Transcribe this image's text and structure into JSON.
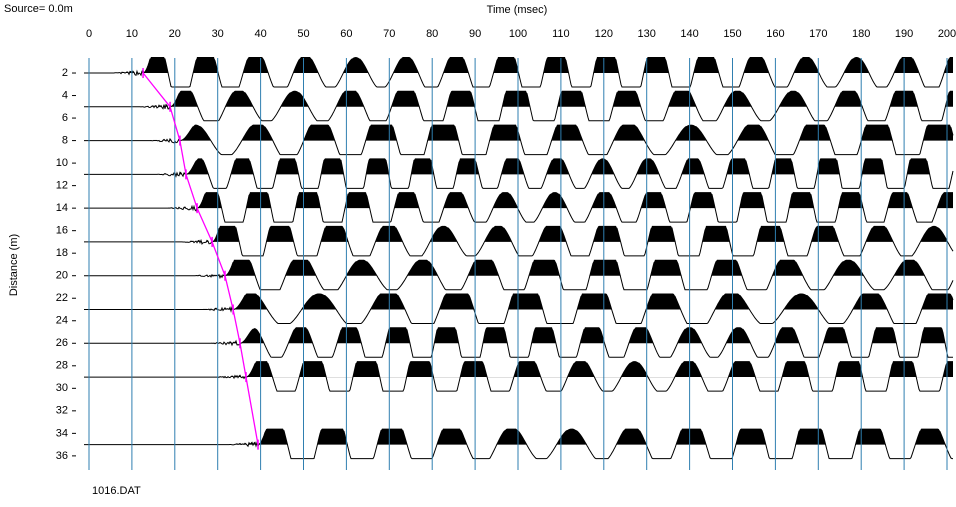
{
  "chart_data": {
    "type": "line",
    "source_label": "Source= 0.0m",
    "title": "Time (msec)",
    "y_label": "Distance (m)",
    "file_label": "1016.DAT",
    "xlim": [
      0,
      200
    ],
    "xticks": [
      0,
      10,
      20,
      30,
      40,
      50,
      60,
      70,
      80,
      90,
      100,
      110,
      120,
      130,
      140,
      150,
      160,
      170,
      180,
      190,
      200
    ],
    "ylim": [
      0,
      38
    ],
    "y_inverted": true,
    "yticks": [
      2,
      4,
      6,
      8,
      10,
      12,
      14,
      16,
      18,
      20,
      22,
      24,
      26,
      28,
      30,
      32,
      34,
      36
    ],
    "grid": true,
    "grid_color": "#2f7fb0",
    "x": [
      12.6,
      18.9,
      21.2,
      22.6,
      25.2,
      28.7,
      31.7,
      33.6,
      35.2,
      36.6,
      39.4
    ],
    "series": [
      {
        "color": "#ff00ff",
        "values": [
          2,
          5,
          8,
          11,
          14,
          17,
          20,
          23,
          26,
          29,
          35
        ]
      }
    ]
  }
}
